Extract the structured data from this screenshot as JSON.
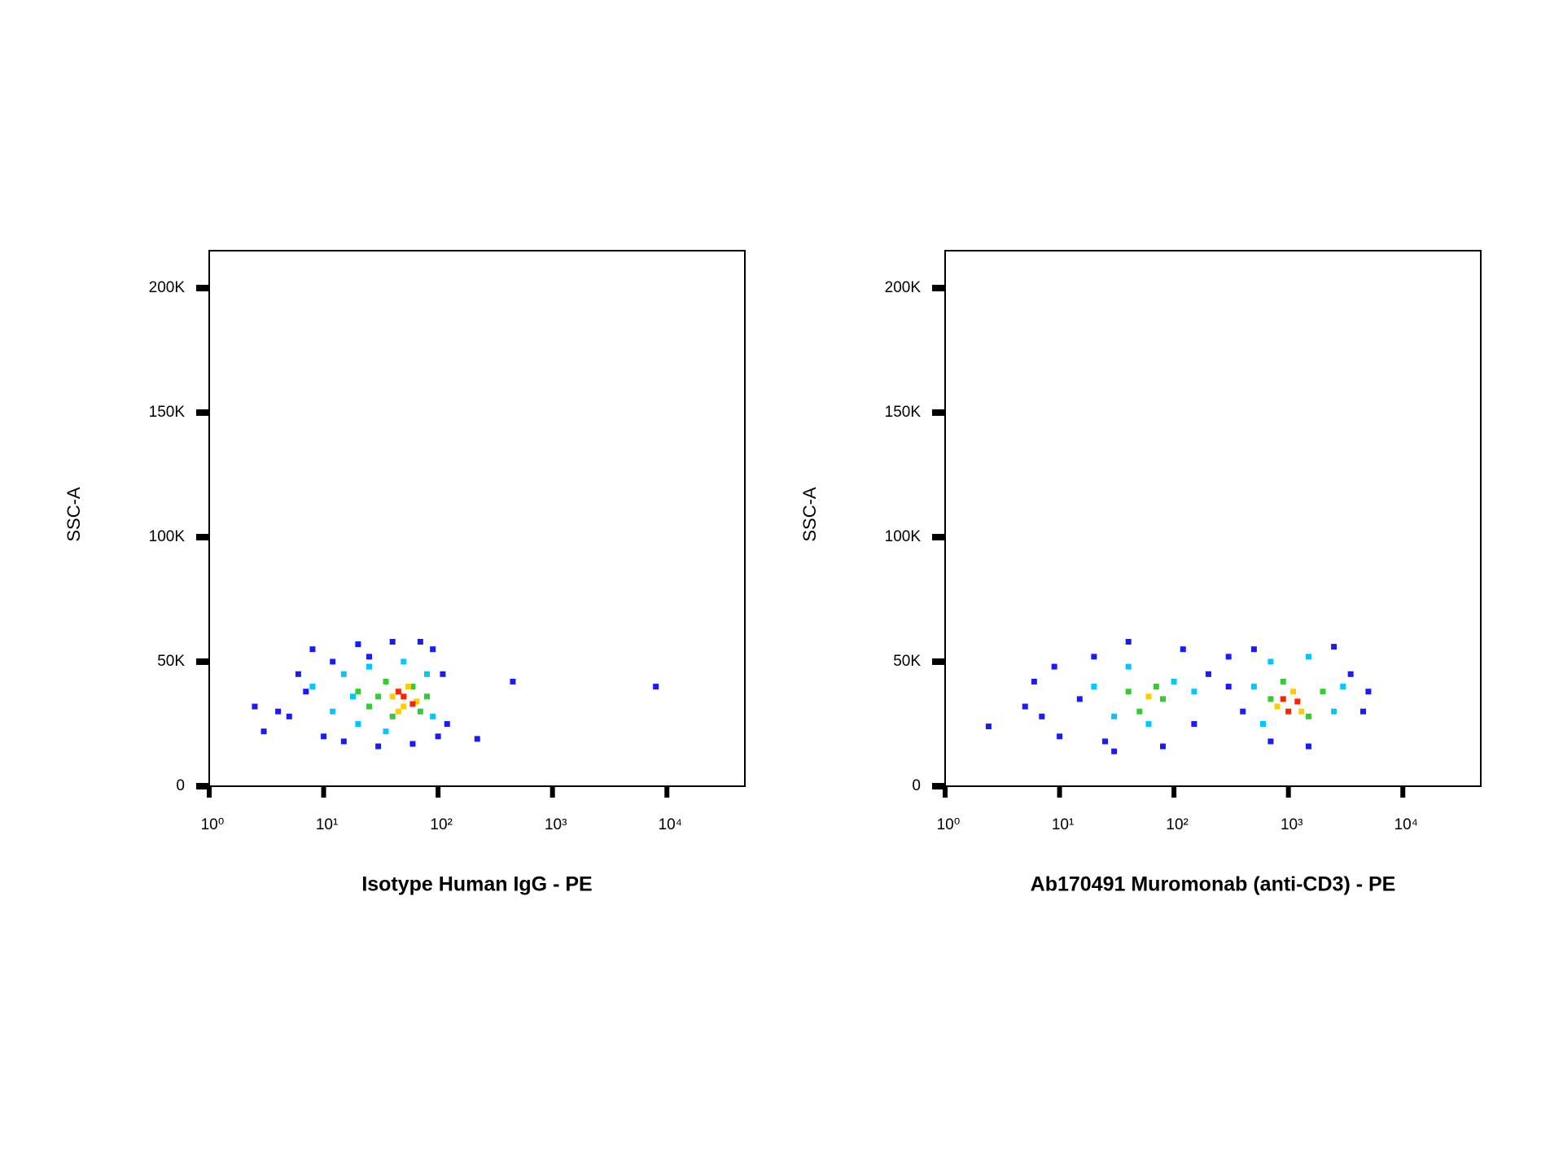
{
  "chart_data": [
    {
      "type": "scatter",
      "xlabel": "Isotype Human IgG - PE",
      "ylabel": "SSC-A",
      "xscale": "log",
      "xlim": [
        1,
        48000
      ],
      "ylim": [
        0,
        215000
      ],
      "xticks": [
        {
          "value": 1,
          "label": "10⁰"
        },
        {
          "value": 10,
          "label": "10¹"
        },
        {
          "value": 100,
          "label": "10²"
        },
        {
          "value": 1000,
          "label": "10³"
        },
        {
          "value": 10000,
          "label": "10⁴"
        }
      ],
      "yticks": [
        0,
        {
          "value": 50000,
          "label": "50K"
        },
        {
          "value": 100000,
          "label": "100K"
        },
        {
          "value": 150000,
          "label": "150K"
        },
        {
          "value": 200000,
          "label": "200K"
        }
      ],
      "series": [
        {
          "color": "#1a1aff",
          "x": [
            4,
            6,
            8,
            10,
            12,
            15,
            20,
            30,
            40,
            60,
            90,
            110,
            120,
            3,
            7,
            2.5,
            5,
            25,
            70,
            100,
            450,
            8000,
            220
          ],
          "values": [
            30000,
            45000,
            55000,
            20000,
            50000,
            18000,
            57000,
            16000,
            58000,
            17000,
            55000,
            45000,
            25000,
            22000,
            38000,
            32000,
            28000,
            52000,
            58000,
            20000,
            42000,
            40000,
            19000
          ]
        },
        {
          "color": "#00c8ff",
          "x": [
            8,
            12,
            15,
            20,
            25,
            35,
            50,
            80,
            90,
            18
          ],
          "values": [
            40000,
            30000,
            45000,
            25000,
            48000,
            22000,
            50000,
            45000,
            28000,
            36000
          ]
        },
        {
          "color": "#33cc33",
          "x": [
            20,
            25,
            35,
            40,
            60,
            70,
            80,
            30
          ],
          "values": [
            38000,
            32000,
            42000,
            28000,
            40000,
            30000,
            36000,
            36000
          ]
        },
        {
          "color": "#ffcc00",
          "x": [
            40,
            50,
            55,
            65,
            45
          ],
          "values": [
            36000,
            32000,
            40000,
            34000,
            30000
          ]
        },
        {
          "color": "#ff2200",
          "x": [
            50,
            60,
            45
          ],
          "values": [
            36000,
            33000,
            38000
          ]
        }
      ]
    },
    {
      "type": "scatter",
      "xlabel": "Ab170491 Muromonab (anti-CD3) - PE",
      "ylabel": "SSC-A",
      "xscale": "log",
      "xlim": [
        1,
        48000
      ],
      "ylim": [
        0,
        215000
      ],
      "xticks": [
        {
          "value": 1,
          "label": "10⁰"
        },
        {
          "value": 10,
          "label": "10¹"
        },
        {
          "value": 100,
          "label": "10²"
        },
        {
          "value": 1000,
          "label": "10³"
        },
        {
          "value": 10000,
          "label": "10⁴"
        }
      ],
      "yticks": [
        0,
        {
          "value": 50000,
          "label": "50K"
        },
        {
          "value": 100000,
          "label": "100K"
        },
        {
          "value": 150000,
          "label": "150K"
        },
        {
          "value": 200000,
          "label": "200K"
        }
      ],
      "series": [
        {
          "color": "#1a1aff",
          "x": [
            2.4,
            5,
            6,
            7,
            9,
            10,
            15,
            20,
            25,
            40,
            80,
            120,
            200,
            300,
            400,
            500,
            700,
            1500,
            2500,
            3500,
            4500,
            5000,
            300,
            150,
            30
          ],
          "values": [
            24000,
            32000,
            42000,
            28000,
            48000,
            20000,
            35000,
            52000,
            18000,
            58000,
            16000,
            55000,
            45000,
            52000,
            30000,
            55000,
            18000,
            16000,
            56000,
            45000,
            30000,
            38000,
            40000,
            25000,
            14000
          ]
        },
        {
          "color": "#00c8ff",
          "x": [
            20,
            30,
            40,
            60,
            100,
            150,
            500,
            700,
            1500,
            2500,
            3000,
            600
          ],
          "values": [
            40000,
            28000,
            48000,
            25000,
            42000,
            38000,
            40000,
            50000,
            52000,
            30000,
            40000,
            25000
          ]
        },
        {
          "color": "#33cc33",
          "x": [
            40,
            50,
            70,
            80,
            700,
            900,
            1500,
            2000
          ],
          "values": [
            38000,
            30000,
            40000,
            35000,
            35000,
            42000,
            28000,
            38000
          ]
        },
        {
          "color": "#ffcc00",
          "x": [
            60,
            800,
            1100,
            1300
          ],
          "values": [
            36000,
            32000,
            38000,
            30000
          ]
        },
        {
          "color": "#ff2200",
          "x": [
            900,
            1000,
            1200
          ],
          "values": [
            35000,
            30000,
            34000
          ]
        }
      ]
    }
  ]
}
